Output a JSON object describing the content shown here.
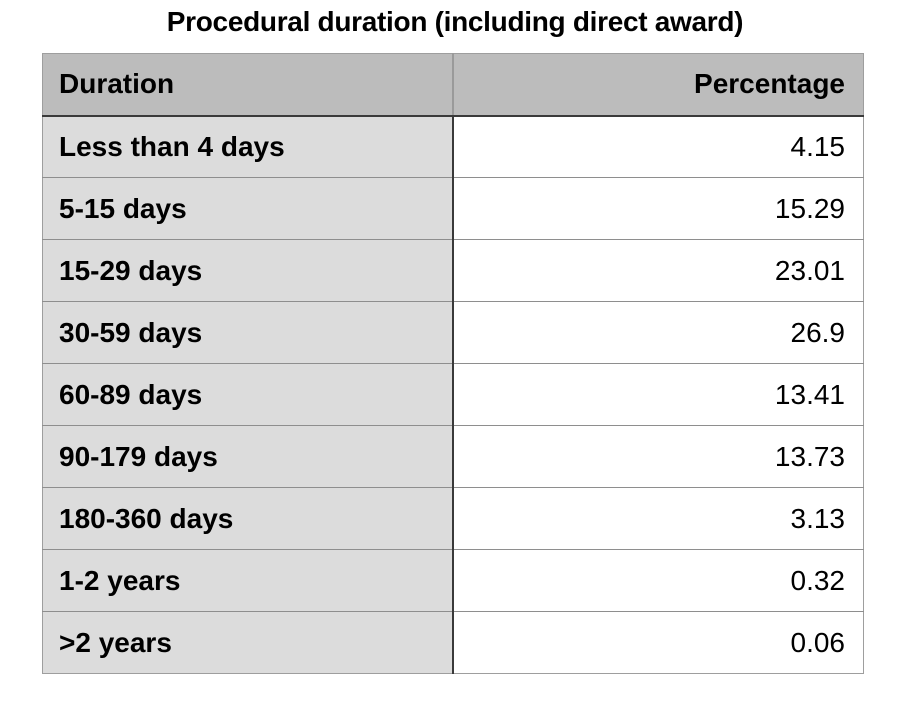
{
  "title": "Procedural duration (including direct award)",
  "table": {
    "columns": [
      "Duration",
      "Percentage"
    ],
    "rows": [
      {
        "duration": "Less than 4 days",
        "percentage": "4.15"
      },
      {
        "duration": "5-15 days",
        "percentage": "15.29"
      },
      {
        "duration": "15-29 days",
        "percentage": "23.01"
      },
      {
        "duration": "30-59 days",
        "percentage": "26.9"
      },
      {
        "duration": "60-89 days",
        "percentage": "13.41"
      },
      {
        "duration": "90-179 days",
        "percentage": "13.73"
      },
      {
        "duration": "180-360 days",
        "percentage": "3.13"
      },
      {
        "duration": "1-2 years",
        "percentage": "0.32"
      },
      {
        "duration": ">2 years",
        "percentage": "0.06"
      }
    ]
  },
  "colors": {
    "page_bg": "#ffffff",
    "header_bg": "#bcbcbc",
    "label_column_bg": "#dcdcdc",
    "value_column_bg": "#ffffff",
    "divider_dark": "#3a3a3a",
    "divider_light": "#8e8e8e",
    "outer_border": "#9e9e9e",
    "text": "#000000"
  },
  "chart_data": {
    "type": "table",
    "title": "Procedural duration (including direct award)",
    "columns": [
      "Duration",
      "Percentage"
    ],
    "categories": [
      "Less than 4 days",
      "5-15 days",
      "15-29 days",
      "30-59 days",
      "60-89 days",
      "90-179 days",
      "180-360 days",
      "1-2 years",
      ">2 years"
    ],
    "values": [
      4.15,
      15.29,
      23.01,
      26.9,
      13.41,
      13.73,
      3.13,
      0.32,
      0.06
    ],
    "value_unit": "percent",
    "layout": {
      "header_row": true,
      "label_column_shaded": true,
      "values_right_aligned": true
    }
  }
}
